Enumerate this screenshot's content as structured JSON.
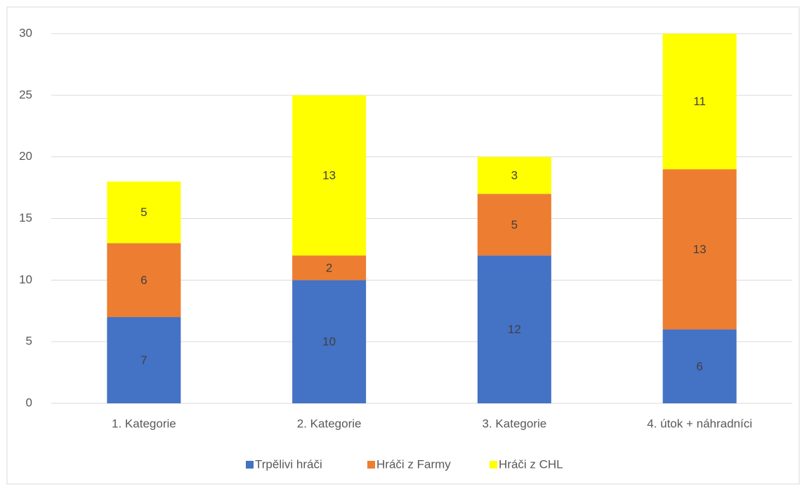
{
  "chart_data": {
    "type": "bar",
    "stacked": true,
    "categories": [
      "1. Kategorie",
      "2. Kategorie",
      "3. Kategorie",
      "4. útok + náhradníci"
    ],
    "series": [
      {
        "name": "Trpělivi hráči",
        "color": "#4472c4",
        "values": [
          7,
          10,
          12,
          6
        ]
      },
      {
        "name": "Hráči z Farmy",
        "color": "#ed7d31",
        "values": [
          6,
          2,
          5,
          13
        ]
      },
      {
        "name": "Hráči z CHL",
        "color": "#ffff00",
        "values": [
          5,
          13,
          3,
          11
        ]
      }
    ],
    "ylim": [
      0,
      30
    ],
    "yticks": [
      0,
      5,
      10,
      15,
      20,
      25,
      30
    ],
    "grid": true,
    "legend": "bottom"
  }
}
